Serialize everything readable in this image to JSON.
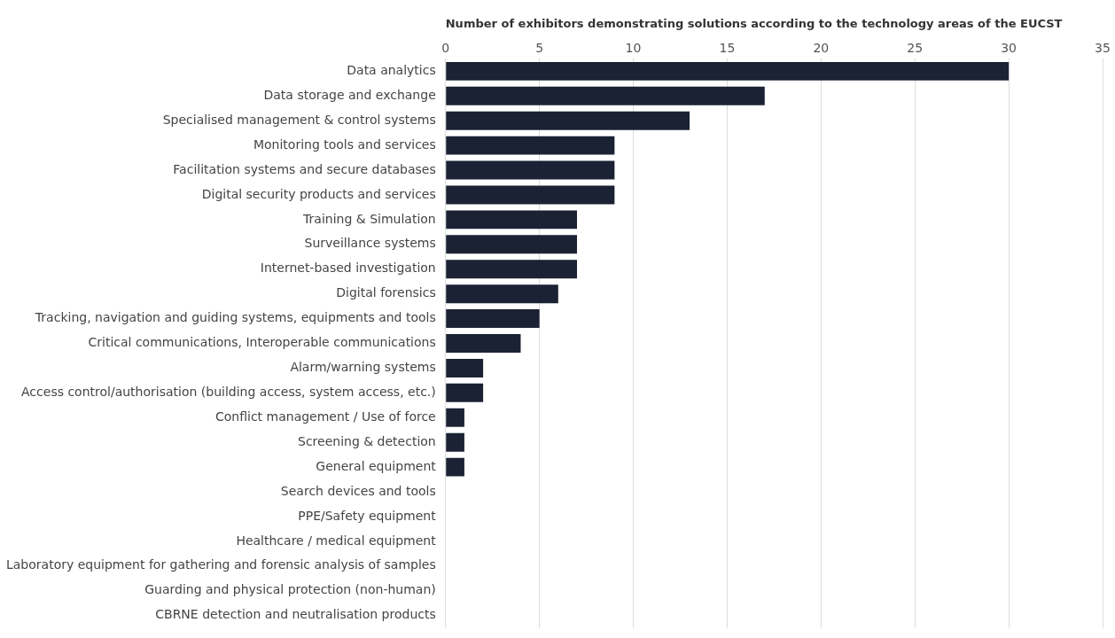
{
  "chart_data": {
    "type": "bar",
    "orientation": "horizontal",
    "title": "Number of exhibitors demonstrating solutions according to the technology areas of the EUCST",
    "categories": [
      "Data analytics",
      "Data storage and exchange",
      "Specialised management & control systems",
      "Monitoring tools and services",
      "Facilitation systems and secure databases",
      "Digital security products and services",
      "Training & Simulation",
      "Surveillance systems",
      "Internet-based investigation",
      "Digital forensics",
      "Tracking, navigation and guiding systems, equipments and tools",
      "Critical communications, Interoperable communications",
      "Alarm/warning systems",
      "Access control/authorisation (building access, system access, etc.)",
      "Conflict management / Use of force",
      "Screening & detection",
      "General equipment",
      "Search devices and tools",
      "PPE/Safety equipment",
      "Healthcare / medical equipment",
      "Laboratory equipment for gathering and forensic analysis of samples",
      "Guarding and physical protection (non-human)",
      "CBRNE detection and neutralisation products"
    ],
    "values": [
      30,
      17,
      13,
      9,
      9,
      9,
      7,
      7,
      7,
      6,
      5,
      4,
      2,
      2,
      1,
      1,
      1,
      0,
      0,
      0,
      0,
      0,
      0
    ],
    "color": "#1a2233",
    "xlim": [
      0,
      35
    ],
    "xticks": [
      0,
      5,
      10,
      15,
      20,
      25,
      30,
      35
    ],
    "grid": "x"
  }
}
